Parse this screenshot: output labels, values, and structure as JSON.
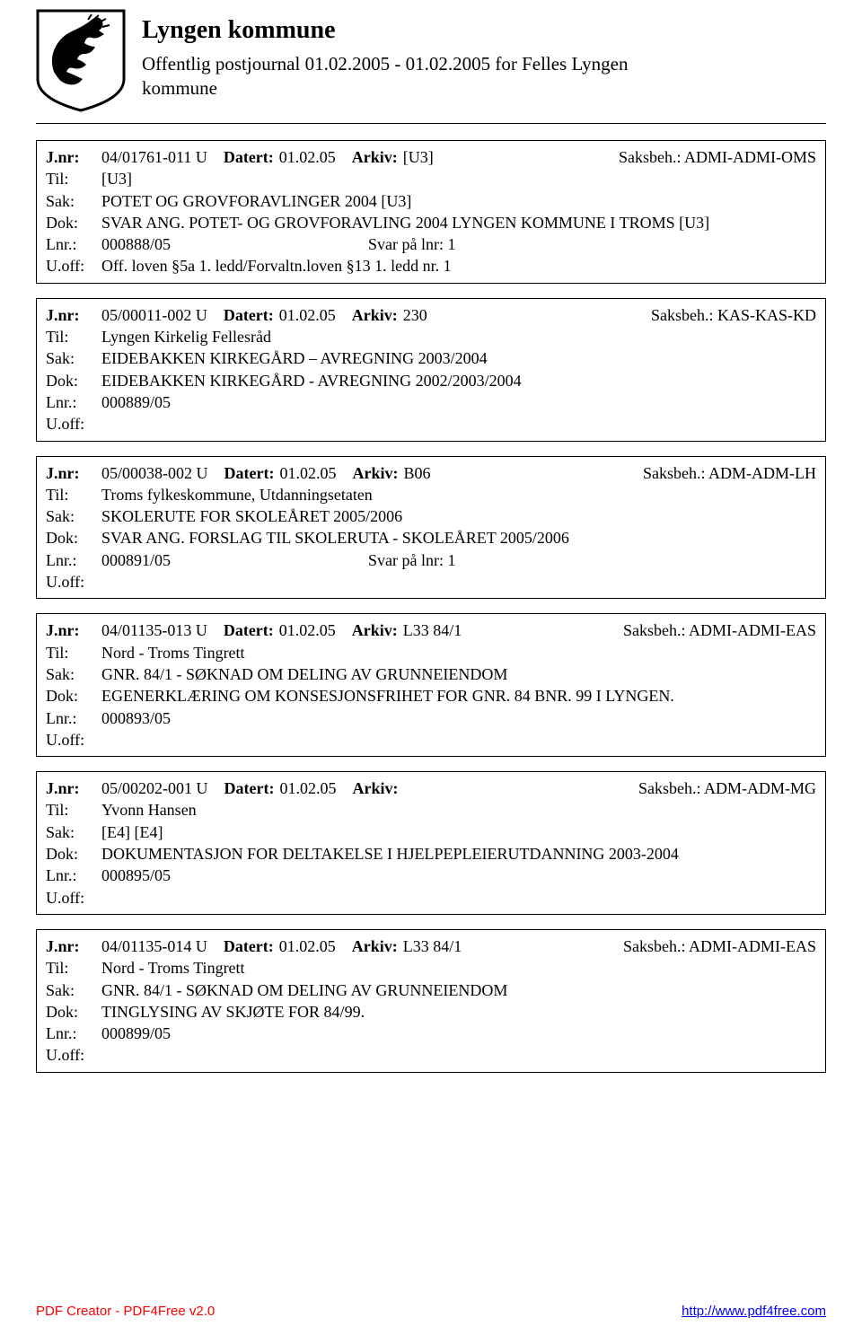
{
  "header": {
    "org_name": "Lyngen kommune",
    "journal_title_line1": "Offentlig postjournal 01.02.2005 - 01.02.2005 for Felles Lyngen",
    "journal_title_line2": "kommune"
  },
  "labels": {
    "jnr": "J.nr:",
    "datert": "Datert:",
    "arkiv": "Arkiv:",
    "saksbeh": "Saksbeh.:",
    "til": "Til:",
    "sak": "Sak:",
    "dok": "Dok:",
    "lnr": "Lnr.:",
    "uoff": "U.off:",
    "svar": "Svar på lnr:"
  },
  "entries": [
    {
      "jnr": "04/01761-011 U",
      "datert": "01.02.05",
      "arkiv": "[U3]",
      "saksbeh": "ADMI-ADMI-OMS",
      "til": "[U3]",
      "sak": "POTET OG GROVFORAVLINGER 2004 [U3]",
      "dok": "SVAR ANG. POTET- OG GROVFORAVLING 2004 LYNGEN KOMMUNE I TROMS [U3]",
      "lnr": "000888/05",
      "svar": "1",
      "uoff": "Off. loven §5a 1. ledd/Forvaltn.loven §13 1. ledd nr. 1"
    },
    {
      "jnr": "05/00011-002 U",
      "datert": "01.02.05",
      "arkiv": "230",
      "saksbeh": "KAS-KAS-KD",
      "til": "Lyngen Kirkelig Fellesråd",
      "sak": "EIDEBAKKEN KIRKEGÅRD – AVREGNING 2003/2004",
      "dok": "EIDEBAKKEN KIRKEGÅRD - AVREGNING 2002/2003/2004",
      "lnr": "000889/05",
      "svar": "",
      "uoff": ""
    },
    {
      "jnr": "05/00038-002 U",
      "datert": "01.02.05",
      "arkiv": "B06",
      "saksbeh": "ADM-ADM-LH",
      "til": "Troms fylkeskommune, Utdanningsetaten",
      "sak": "SKOLERUTE FOR SKOLEÅRET 2005/2006",
      "dok": "SVAR ANG. FORSLAG TIL SKOLERUTA - SKOLEÅRET 2005/2006",
      "lnr": "000891/05",
      "svar": "1",
      "uoff": ""
    },
    {
      "jnr": "04/01135-013 U",
      "datert": "01.02.05",
      "arkiv": "L33  84/1",
      "saksbeh": "ADMI-ADMI-EAS",
      "til": "Nord - Troms Tingrett",
      "sak": "GNR. 84/1 -  SØKNAD OM DELING AV GRUNNEIENDOM",
      "dok": "EGENERKLÆRING OM KONSESJONSFRIHET FOR GNR. 84 BNR. 99 I LYNGEN.",
      "lnr": "000893/05",
      "svar": "",
      "uoff": ""
    },
    {
      "jnr": "05/00202-001 U",
      "datert": "01.02.05",
      "arkiv": "",
      "saksbeh": "ADM-ADM-MG",
      "til": "Yvonn Hansen",
      "sak": "[E4] [E4]",
      "dok": "DOKUMENTASJON FOR DELTAKELSE I HJELPEPLEIERUTDANNING 2003-2004",
      "lnr": "000895/05",
      "svar": "",
      "uoff": ""
    },
    {
      "jnr": "04/01135-014 U",
      "datert": "01.02.05",
      "arkiv": "L33  84/1",
      "saksbeh": "ADMI-ADMI-EAS",
      "til": "Nord - Troms Tingrett",
      "sak": "GNR. 84/1 -  SØKNAD OM DELING AV GRUNNEIENDOM",
      "dok": "TINGLYSING AV SKJØTE FOR 84/99.",
      "lnr": "000899/05",
      "svar": "",
      "uoff": ""
    }
  ],
  "footer": {
    "left": "PDF Creator - PDF4Free v2.0",
    "right": "http://www.pdf4free.com"
  },
  "colors": {
    "text": "#000000",
    "footer_left": "#ff0000",
    "footer_right": "#0000ff",
    "background": "#ffffff",
    "border": "#000000"
  }
}
